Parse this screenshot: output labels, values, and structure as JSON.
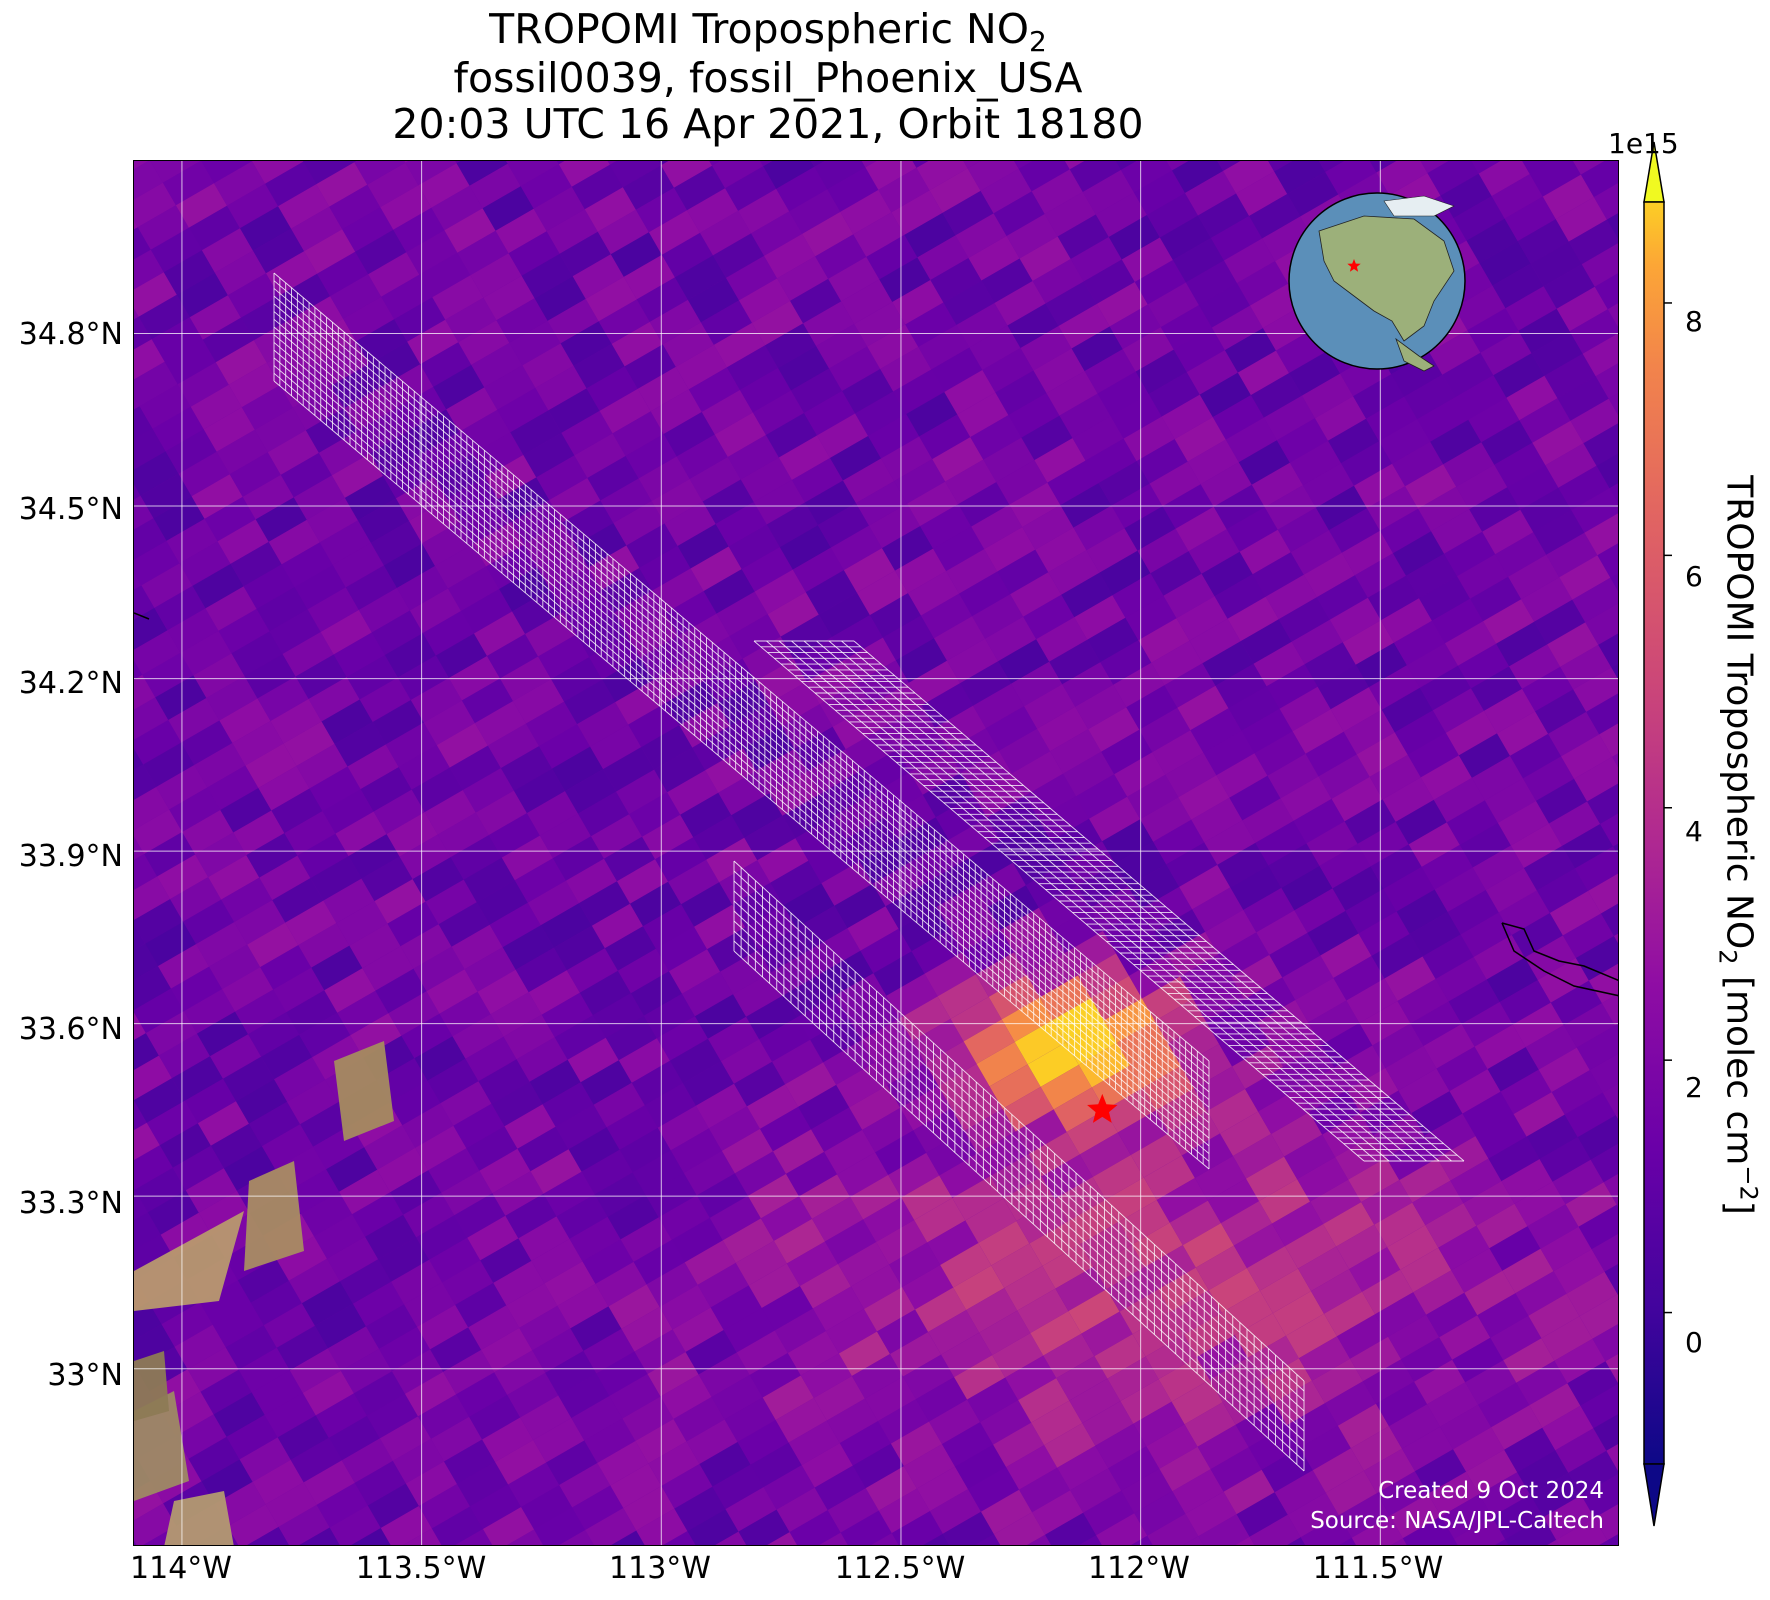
{
  "title": {
    "line1_prefix": "TROPOMI Tropospheric NO",
    "line1_sub": "2",
    "line2": "fossil0039, fossil_Phoenix_USA",
    "line3": "20:03 UTC 16 Apr 2021, Orbit 18180"
  },
  "map": {
    "lat_labels": [
      "34.8°N",
      "34.5°N",
      "34.2°N",
      "33.9°N",
      "33.6°N",
      "33.3°N",
      "33°N"
    ],
    "lon_labels": [
      "114°W",
      "113.5°W",
      "113°W",
      "112.5°W",
      "112°W",
      "111.5°W"
    ],
    "lat_values": [
      34.8,
      34.5,
      34.2,
      33.9,
      33.6,
      33.3,
      33.0
    ],
    "lon_values": [
      -114.0,
      -113.5,
      -113.0,
      -112.5,
      -112.0,
      -111.5
    ],
    "extent": {
      "lon_min": -114.1,
      "lon_max": -111.0,
      "lat_min": 32.69,
      "lat_max": 35.1
    },
    "target_marker": {
      "lon": -112.08,
      "lat": 33.45,
      "color": "#ff0000",
      "symbol": "star"
    },
    "overlay_grid_color": "#ffffff",
    "colormap": "plasma"
  },
  "colorbar": {
    "exponent": "1e15",
    "ticks": [
      "8",
      "6",
      "4",
      "2",
      "0"
    ],
    "tick_values": [
      8,
      6,
      4,
      2,
      0
    ],
    "range": [
      -1.2,
      8.8
    ],
    "label_prefix": "TROPOMI Tropospheric NO",
    "label_sub": "2",
    "label_mid": " [molec cm",
    "label_sup": "−2",
    "label_suffix": "]"
  },
  "credits": {
    "created": "Created 9 Oct 2024",
    "source": "Source: NASA/JPL-Caltech"
  },
  "inset_globe": {
    "marker_color": "#ff0000",
    "ocean_color": "#5b8fb9",
    "land_color": "#9cb07a"
  }
}
